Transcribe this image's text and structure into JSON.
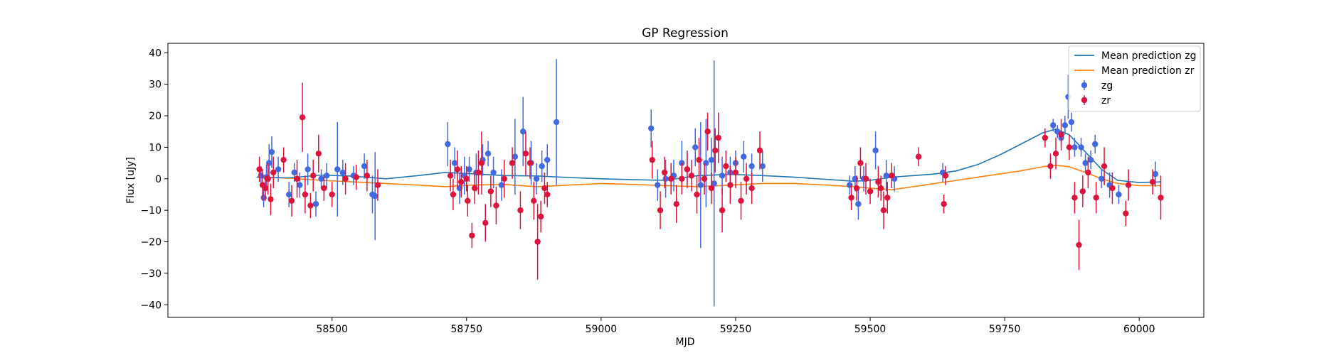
{
  "chart_data": {
    "type": "scatter",
    "title": "GP Regression",
    "xlabel": "MJD",
    "ylabel": "Flux [uJy]",
    "xlim": [
      58195,
      60120
    ],
    "ylim": [
      -44,
      43
    ],
    "xticks": [
      58500,
      58750,
      59000,
      59250,
      59500,
      59750,
      60000
    ],
    "yticks": [
      -40,
      -30,
      -20,
      -10,
      0,
      10,
      20,
      30,
      40
    ],
    "grid": false,
    "legend_position": "top-right",
    "colors": {
      "zg_line": "#1f77b4",
      "zr_line": "#ff7f0e",
      "zg_points": "#4169e1",
      "zr_points": "#dc143c"
    },
    "legend": [
      {
        "label": "Mean prediction zg",
        "kind": "line",
        "color": "#1f77b4"
      },
      {
        "label": "Mean prediction zr",
        "kind": "line",
        "color": "#ff7f0e"
      },
      {
        "label": "zg",
        "kind": "errorbar",
        "color": "#4169e1"
      },
      {
        "label": "zr",
        "kind": "errorbar",
        "color": "#dc143c"
      }
    ],
    "series": [
      {
        "name": "Mean prediction zg",
        "kind": "line",
        "x": [
          58360,
          58420,
          58480,
          58540,
          58600,
          58660,
          58710,
          58760,
          58820,
          58880,
          58940,
          59000,
          59060,
          59120,
          59180,
          59240,
          59300,
          59360,
          59420,
          59470,
          59500,
          59540,
          59580,
          59620,
          59660,
          59700,
          59740,
          59780,
          59820,
          59845,
          59870,
          59900,
          59930,
          59960,
          60000,
          60040
        ],
        "y": [
          0.5,
          0.3,
          1.2,
          0.8,
          0.0,
          1.0,
          2.0,
          1.6,
          1.0,
          0.9,
          0.4,
          0.0,
          -0.3,
          -0.5,
          1.0,
          1.4,
          1.0,
          0.5,
          -0.2,
          -0.8,
          -0.5,
          0.5,
          1.0,
          1.5,
          2.5,
          4.5,
          7.5,
          11.0,
          14.5,
          15.8,
          14.0,
          8.5,
          3.0,
          -0.5,
          -1.2,
          -1.0
        ]
      },
      {
        "name": "Mean prediction zr",
        "kind": "line",
        "x": [
          58360,
          58420,
          58480,
          58540,
          58600,
          58660,
          58710,
          58760,
          58820,
          58880,
          58940,
          59000,
          59060,
          59120,
          59180,
          59240,
          59300,
          59360,
          59420,
          59470,
          59500,
          59540,
          59580,
          59620,
          59660,
          59700,
          59740,
          59780,
          59820,
          59845,
          59870,
          59900,
          59930,
          59960,
          60000,
          60040
        ],
        "y": [
          0.5,
          0.2,
          -0.5,
          -1.0,
          -1.5,
          -2.0,
          -2.5,
          -2.0,
          -1.8,
          -2.5,
          -2.0,
          -1.5,
          -1.8,
          -2.2,
          -2.5,
          -2.0,
          -1.5,
          -1.5,
          -2.0,
          -2.5,
          -3.0,
          -3.5,
          -2.5,
          -1.5,
          -0.5,
          0.5,
          1.5,
          2.5,
          3.8,
          4.3,
          3.8,
          2.0,
          0.0,
          -1.5,
          -2.2,
          -2.2
        ]
      },
      {
        "name": "zg",
        "kind": "errorbar",
        "x": [
          58368,
          58373,
          58378,
          58383,
          58388,
          58400,
          58420,
          58430,
          58440,
          58455,
          58470,
          58480,
          58490,
          58510,
          58520,
          58540,
          58560,
          58575,
          58580,
          58715,
          58728,
          58737,
          58746,
          58755,
          58768,
          58780,
          58790,
          58800,
          58815,
          58840,
          58855,
          58870,
          58880,
          58890,
          58900,
          58917,
          59093,
          59105,
          59120,
          59135,
          59150,
          59160,
          59175,
          59185,
          59195,
          59205,
          59210,
          59225,
          59240,
          59250,
          59265,
          59280,
          59300,
          59462,
          59472,
          59478,
          59488,
          59510,
          59530,
          59545,
          59635,
          59840,
          59848,
          59855,
          59862,
          59868,
          59874,
          59880,
          59892,
          59900,
          59910,
          59918,
          59930,
          59945,
          59962,
          60030
        ],
        "y": [
          1.0,
          -6.0,
          0.5,
          5.0,
          8.5,
          3.0,
          -5.0,
          2.0,
          -2.0,
          3.0,
          -8.0,
          0.0,
          1.0,
          3.0,
          2.0,
          1.0,
          4.0,
          -5.0,
          -5.5,
          11.0,
          5.0,
          -3.0,
          1.0,
          3.0,
          2.0,
          6.0,
          8.0,
          2.0,
          -2.0,
          7.0,
          15.0,
          5.0,
          0.0,
          4.0,
          6.0,
          18.0,
          16.0,
          -2.0,
          0.0,
          1.0,
          5.0,
          3.0,
          10.0,
          -2.0,
          5.0,
          6.0,
          -1.5,
          1.0,
          2.0,
          5.0,
          7.0,
          4.0,
          4.0,
          -2.0,
          0.0,
          -8.0,
          0.0,
          9.0,
          1.0,
          0.0,
          2.0,
          17.0,
          15.0,
          13.0,
          17.0,
          26.0,
          18.0,
          10.0,
          10.0,
          5.0,
          6.0,
          11.0,
          0.0,
          -2.0,
          -5.0,
          1.5
        ],
        "err": [
          3,
          3,
          4,
          6,
          5,
          4,
          4,
          3,
          4,
          5,
          4,
          3,
          4,
          15,
          4,
          3,
          4,
          6,
          14,
          7,
          5,
          5,
          6,
          4,
          6,
          5,
          4,
          5,
          5,
          12,
          11,
          7,
          5,
          5,
          5,
          20,
          6,
          5,
          6,
          5,
          7,
          5,
          6,
          20,
          14,
          7,
          39,
          6,
          5,
          4,
          5,
          4,
          5,
          3,
          4,
          5,
          4,
          6,
          5,
          4,
          3,
          2,
          2,
          2,
          3,
          7,
          3,
          3,
          3,
          3,
          3,
          3,
          3,
          4,
          3,
          4
        ]
      },
      {
        "name": "zr",
        "kind": "errorbar",
        "x": [
          58365,
          58371,
          58376,
          58381,
          58386,
          58391,
          58410,
          58425,
          58435,
          58445,
          58450,
          58460,
          58465,
          58475,
          58485,
          58500,
          58525,
          58545,
          58565,
          58585,
          58720,
          58725,
          58733,
          58740,
          58750,
          58752,
          58760,
          58765,
          58772,
          58778,
          58785,
          58795,
          58805,
          58820,
          58835,
          58850,
          58860,
          58868,
          58875,
          58882,
          58888,
          58895,
          58900,
          59095,
          59110,
          59118,
          59130,
          59140,
          59150,
          59160,
          59168,
          59178,
          59182,
          59192,
          59198,
          59205,
          59212,
          59218,
          59225,
          59232,
          59240,
          59250,
          59260,
          59270,
          59280,
          59295,
          59465,
          59475,
          59482,
          59492,
          59500,
          59515,
          59520,
          59525,
          59532,
          59540,
          59590,
          59637,
          59640,
          59825,
          59835,
          59845,
          59855,
          59870,
          59880,
          59888,
          59895,
          59905,
          59920,
          59935,
          59950,
          59975,
          59980,
          60025,
          60040
        ],
        "y": [
          3.0,
          -2.0,
          -3.0,
          0.0,
          -6.5,
          2.0,
          6.0,
          -7.0,
          0.0,
          19.5,
          -5.0,
          -8.5,
          1.0,
          8.0,
          -3.0,
          -5.0,
          0.0,
          0.5,
          1.0,
          -2.0,
          1.0,
          -5.0,
          3.0,
          -1.0,
          0.0,
          -7.0,
          -18.0,
          -3.0,
          2.0,
          5.0,
          -14.0,
          -4.0,
          -8.5,
          0.0,
          5.0,
          -10.0,
          8.0,
          5.0,
          -7.0,
          -20.0,
          -12.0,
          -3.0,
          -5.0,
          6.0,
          -10.0,
          2.0,
          0.0,
          -8.0,
          0.0,
          3.0,
          1.0,
          -5.0,
          6.0,
          0.0,
          15.0,
          -3.0,
          9.0,
          13.0,
          -10.0,
          4.0,
          -2.0,
          2.0,
          -7.0,
          0.0,
          -3.0,
          9.0,
          -6.0,
          -3.0,
          5.0,
          0.0,
          -4.0,
          -1.0,
          -3.0,
          -10.0,
          -6.0,
          1.0,
          7.0,
          -8.0,
          1.0,
          13.0,
          4.0,
          8.0,
          14.0,
          10.0,
          -6.0,
          -21.0,
          -4.0,
          2.0,
          -6.0,
          4.0,
          -3.0,
          -11.0,
          -2.0,
          -1.0,
          -6.0
        ],
        "err": [
          4,
          5,
          4,
          5,
          5,
          5,
          4,
          5,
          6,
          11,
          6,
          4,
          5,
          6,
          4,
          4,
          5,
          4,
          5,
          5,
          5,
          5,
          6,
          5,
          4,
          5,
          4,
          5,
          7,
          10,
          6,
          5,
          6,
          6,
          5,
          6,
          7,
          5,
          6,
          12,
          5,
          5,
          4,
          6,
          6,
          5,
          5,
          6,
          5,
          6,
          5,
          6,
          7,
          5,
          6,
          5,
          7,
          8,
          7,
          5,
          6,
          5,
          6,
          5,
          5,
          6,
          4,
          4,
          5,
          5,
          4,
          5,
          4,
          6,
          5,
          4,
          3,
          3,
          3,
          3,
          4,
          5,
          5,
          4,
          5,
          8,
          5,
          5,
          5,
          6,
          5,
          4,
          5,
          4,
          7
        ]
      }
    ]
  }
}
